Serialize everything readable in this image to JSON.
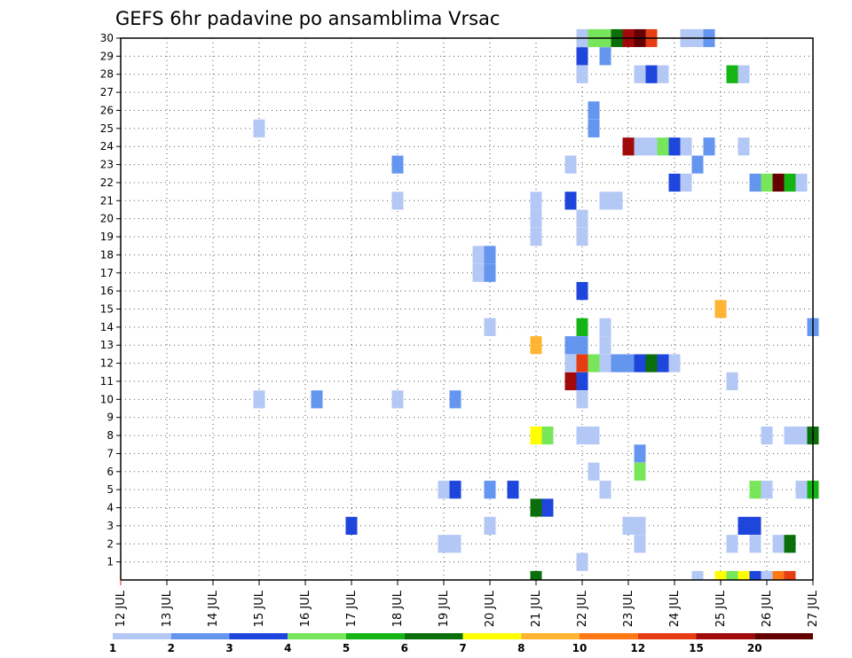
{
  "chart_data": {
    "type": "heatmap",
    "title": "GEFS 6hr padavine po ansamblima Vrsac",
    "xlabel": "",
    "ylabel": "",
    "x_ticks": [
      "12 JUL",
      "13 JUL",
      "14 JUL",
      "15 JUL",
      "16 JUL",
      "17 JUL",
      "18 JUL",
      "19 JUL",
      "20 JUL",
      "21 JUL",
      "22 JUL",
      "23 JUL",
      "24 JUL",
      "25 JUL",
      "26 JUL",
      "27 JUL"
    ],
    "y_ticks": [
      1,
      2,
      3,
      4,
      5,
      6,
      7,
      8,
      9,
      10,
      11,
      12,
      13,
      14,
      15,
      16,
      17,
      18,
      19,
      20,
      21,
      22,
      23,
      24,
      25,
      26,
      27,
      28,
      29,
      30
    ],
    "xlim": [
      12,
      27
    ],
    "ylim": [
      0,
      30
    ],
    "time_step_hours": 6,
    "grid": true,
    "legend": {
      "placement": "bottom",
      "labels": [
        "1",
        "2",
        "3",
        "4",
        "5",
        "6",
        "7",
        "8",
        "10",
        "12",
        "15",
        "20"
      ],
      "colors": [
        "#b4c8f5",
        "#6496f0",
        "#1e46dc",
        "#78e65a",
        "#14b414",
        "#0a6e0a",
        "#ffff00",
        "#ffb432",
        "#ff7814",
        "#e63c14",
        "#a00a0a",
        "#640000"
      ]
    },
    "cells": [
      {
        "m": 30,
        "t": 22.0,
        "c": 0
      },
      {
        "m": 30,
        "t": 22.25,
        "c": 3
      },
      {
        "m": 30,
        "t": 22.5,
        "c": 3
      },
      {
        "m": 30,
        "t": 22.75,
        "c": 5
      },
      {
        "m": 30,
        "t": 23.0,
        "c": 10
      },
      {
        "m": 30,
        "t": 23.25,
        "c": 11
      },
      {
        "m": 30,
        "t": 23.5,
        "c": 9
      },
      {
        "m": 30,
        "t": 24.25,
        "c": 0
      },
      {
        "m": 30,
        "t": 24.5,
        "c": 0
      },
      {
        "m": 30,
        "t": 24.75,
        "c": 1
      },
      {
        "m": 29,
        "t": 22.0,
        "c": 2
      },
      {
        "m": 29,
        "t": 22.5,
        "c": 1
      },
      {
        "m": 28,
        "t": 22.0,
        "c": 0
      },
      {
        "m": 28,
        "t": 23.25,
        "c": 0
      },
      {
        "m": 28,
        "t": 23.5,
        "c": 2
      },
      {
        "m": 28,
        "t": 23.75,
        "c": 0
      },
      {
        "m": 28,
        "t": 25.25,
        "c": 4
      },
      {
        "m": 28,
        "t": 25.5,
        "c": 0
      },
      {
        "m": 26,
        "t": 22.25,
        "c": 1
      },
      {
        "m": 25,
        "t": 15.0,
        "c": 0
      },
      {
        "m": 25,
        "t": 22.25,
        "c": 1
      },
      {
        "m": 24,
        "t": 23.0,
        "c": 10
      },
      {
        "m": 24,
        "t": 23.25,
        "c": 0
      },
      {
        "m": 24,
        "t": 23.5,
        "c": 0
      },
      {
        "m": 24,
        "t": 23.75,
        "c": 3
      },
      {
        "m": 24,
        "t": 24.0,
        "c": 2
      },
      {
        "m": 24,
        "t": 24.25,
        "c": 0
      },
      {
        "m": 24,
        "t": 24.75,
        "c": 1
      },
      {
        "m": 24,
        "t": 25.5,
        "c": 0
      },
      {
        "m": 23,
        "t": 18.0,
        "c": 1
      },
      {
        "m": 23,
        "t": 21.75,
        "c": 0
      },
      {
        "m": 23,
        "t": 24.5,
        "c": 1
      },
      {
        "m": 22,
        "t": 24.0,
        "c": 2
      },
      {
        "m": 22,
        "t": 24.25,
        "c": 0
      },
      {
        "m": 22,
        "t": 25.75,
        "c": 1
      },
      {
        "m": 22,
        "t": 26.0,
        "c": 3
      },
      {
        "m": 22,
        "t": 26.25,
        "c": 11
      },
      {
        "m": 22,
        "t": 26.5,
        "c": 4
      },
      {
        "m": 22,
        "t": 26.75,
        "c": 0
      },
      {
        "m": 21,
        "t": 18.0,
        "c": 0
      },
      {
        "m": 21,
        "t": 21.0,
        "c": 0
      },
      {
        "m": 21,
        "t": 21.75,
        "c": 2
      },
      {
        "m": 21,
        "t": 22.5,
        "c": 0
      },
      {
        "m": 21,
        "t": 22.75,
        "c": 0
      },
      {
        "m": 20,
        "t": 21.0,
        "c": 0
      },
      {
        "m": 20,
        "t": 22.0,
        "c": 0
      },
      {
        "m": 19,
        "t": 21.0,
        "c": 0
      },
      {
        "m": 19,
        "t": 22.0,
        "c": 0
      },
      {
        "m": 18,
        "t": 19.75,
        "c": 0
      },
      {
        "m": 18,
        "t": 20.0,
        "c": 1
      },
      {
        "m": 17,
        "t": 19.75,
        "c": 0
      },
      {
        "m": 17,
        "t": 20.0,
        "c": 1
      },
      {
        "m": 16,
        "t": 22.0,
        "c": 2
      },
      {
        "m": 15,
        "t": 25.0,
        "c": 7
      },
      {
        "m": 14,
        "t": 20.0,
        "c": 0
      },
      {
        "m": 14,
        "t": 22.0,
        "c": 4
      },
      {
        "m": 14,
        "t": 22.5,
        "c": 0
      },
      {
        "m": 14,
        "t": 27.0,
        "c": 1
      },
      {
        "m": 13,
        "t": 21.0,
        "c": 7
      },
      {
        "m": 13,
        "t": 21.75,
        "c": 1
      },
      {
        "m": 13,
        "t": 22.0,
        "c": 1
      },
      {
        "m": 13,
        "t": 22.5,
        "c": 0
      },
      {
        "m": 12,
        "t": 21.75,
        "c": 0
      },
      {
        "m": 12,
        "t": 22.0,
        "c": 9
      },
      {
        "m": 12,
        "t": 22.25,
        "c": 3
      },
      {
        "m": 12,
        "t": 22.5,
        "c": 0
      },
      {
        "m": 12,
        "t": 22.75,
        "c": 1
      },
      {
        "m": 12,
        "t": 23.0,
        "c": 1
      },
      {
        "m": 12,
        "t": 23.25,
        "c": 2
      },
      {
        "m": 12,
        "t": 23.5,
        "c": 5
      },
      {
        "m": 12,
        "t": 23.75,
        "c": 2
      },
      {
        "m": 12,
        "t": 24.0,
        "c": 0
      },
      {
        "m": 11,
        "t": 21.75,
        "c": 10
      },
      {
        "m": 11,
        "t": 22.0,
        "c": 2
      },
      {
        "m": 11,
        "t": 25.25,
        "c": 0
      },
      {
        "m": 10,
        "t": 15.0,
        "c": 0
      },
      {
        "m": 10,
        "t": 16.25,
        "c": 1
      },
      {
        "m": 10,
        "t": 18.0,
        "c": 0
      },
      {
        "m": 10,
        "t": 19.25,
        "c": 1
      },
      {
        "m": 10,
        "t": 22.0,
        "c": 0
      },
      {
        "m": 8,
        "t": 21.0,
        "c": 6
      },
      {
        "m": 8,
        "t": 21.25,
        "c": 3
      },
      {
        "m": 8,
        "t": 22.0,
        "c": 0
      },
      {
        "m": 8,
        "t": 22.25,
        "c": 0
      },
      {
        "m": 8,
        "t": 26.0,
        "c": 0
      },
      {
        "m": 8,
        "t": 26.5,
        "c": 0
      },
      {
        "m": 8,
        "t": 26.75,
        "c": 0
      },
      {
        "m": 8,
        "t": 27.0,
        "c": 5
      },
      {
        "m": 7,
        "t": 23.25,
        "c": 1
      },
      {
        "m": 6,
        "t": 22.25,
        "c": 0
      },
      {
        "m": 6,
        "t": 23.25,
        "c": 3
      },
      {
        "m": 5,
        "t": 19.0,
        "c": 0
      },
      {
        "m": 5,
        "t": 19.25,
        "c": 2
      },
      {
        "m": 5,
        "t": 20.0,
        "c": 1
      },
      {
        "m": 5,
        "t": 20.5,
        "c": 2
      },
      {
        "m": 5,
        "t": 22.5,
        "c": 0
      },
      {
        "m": 5,
        "t": 25.75,
        "c": 3
      },
      {
        "m": 5,
        "t": 26.0,
        "c": 0
      },
      {
        "m": 5,
        "t": 26.75,
        "c": 0
      },
      {
        "m": 5,
        "t": 27.0,
        "c": 4
      },
      {
        "m": 4,
        "t": 21.0,
        "c": 5
      },
      {
        "m": 4,
        "t": 21.25,
        "c": 2
      },
      {
        "m": 3,
        "t": 17.0,
        "c": 2
      },
      {
        "m": 3,
        "t": 20.0,
        "c": 0
      },
      {
        "m": 3,
        "t": 23.0,
        "c": 0
      },
      {
        "m": 3,
        "t": 23.25,
        "c": 0
      },
      {
        "m": 3,
        "t": 25.5,
        "c": 2
      },
      {
        "m": 3,
        "t": 25.75,
        "c": 2
      },
      {
        "m": 2,
        "t": 19.0,
        "c": 0
      },
      {
        "m": 2,
        "t": 19.25,
        "c": 0
      },
      {
        "m": 2,
        "t": 23.25,
        "c": 0
      },
      {
        "m": 2,
        "t": 25.25,
        "c": 0
      },
      {
        "m": 2,
        "t": 25.75,
        "c": 0
      },
      {
        "m": 2,
        "t": 26.25,
        "c": 0
      },
      {
        "m": 2,
        "t": 26.5,
        "c": 5
      },
      {
        "m": 1,
        "t": 22.0,
        "c": 0
      },
      {
        "m": 0,
        "t": 21.0,
        "c": 5
      },
      {
        "m": 0,
        "t": 24.5,
        "c": 0
      },
      {
        "m": 0,
        "t": 25.0,
        "c": 6
      },
      {
        "m": 0,
        "t": 25.25,
        "c": 3
      },
      {
        "m": 0,
        "t": 25.5,
        "c": 6
      },
      {
        "m": 0,
        "t": 25.75,
        "c": 2
      },
      {
        "m": 0,
        "t": 26.0,
        "c": 0
      },
      {
        "m": 0,
        "t": 26.25,
        "c": 8
      },
      {
        "m": 0,
        "t": 26.5,
        "c": 9
      }
    ]
  }
}
